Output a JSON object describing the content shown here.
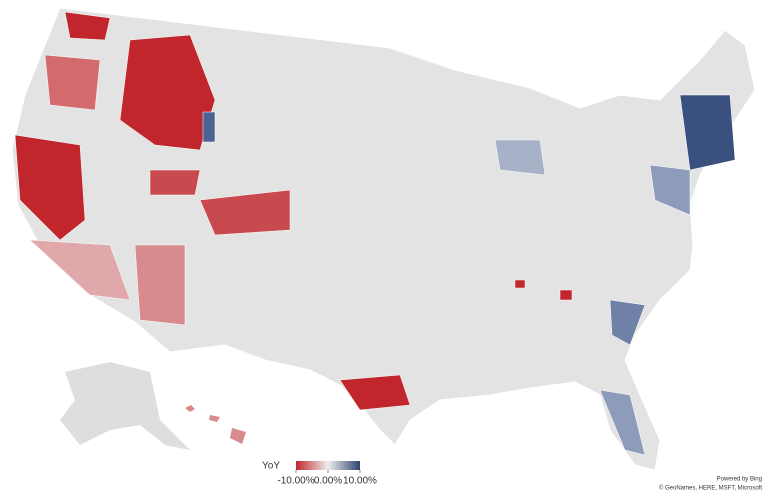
{
  "legend": {
    "title": "YoY",
    "ticks": [
      {
        "value": -10,
        "label": "-10.00%"
      },
      {
        "value": 0,
        "label": "0.00%"
      },
      {
        "value": 10,
        "label": "10.00%"
      }
    ],
    "colors": [
      "#c0262b",
      "#eeeeee",
      "#2e4470"
    ]
  },
  "attribution": {
    "powered_by": "Powered by Bing",
    "copyright": "© GeoNames, HERE, MSFT, Microsoft"
  }
}
